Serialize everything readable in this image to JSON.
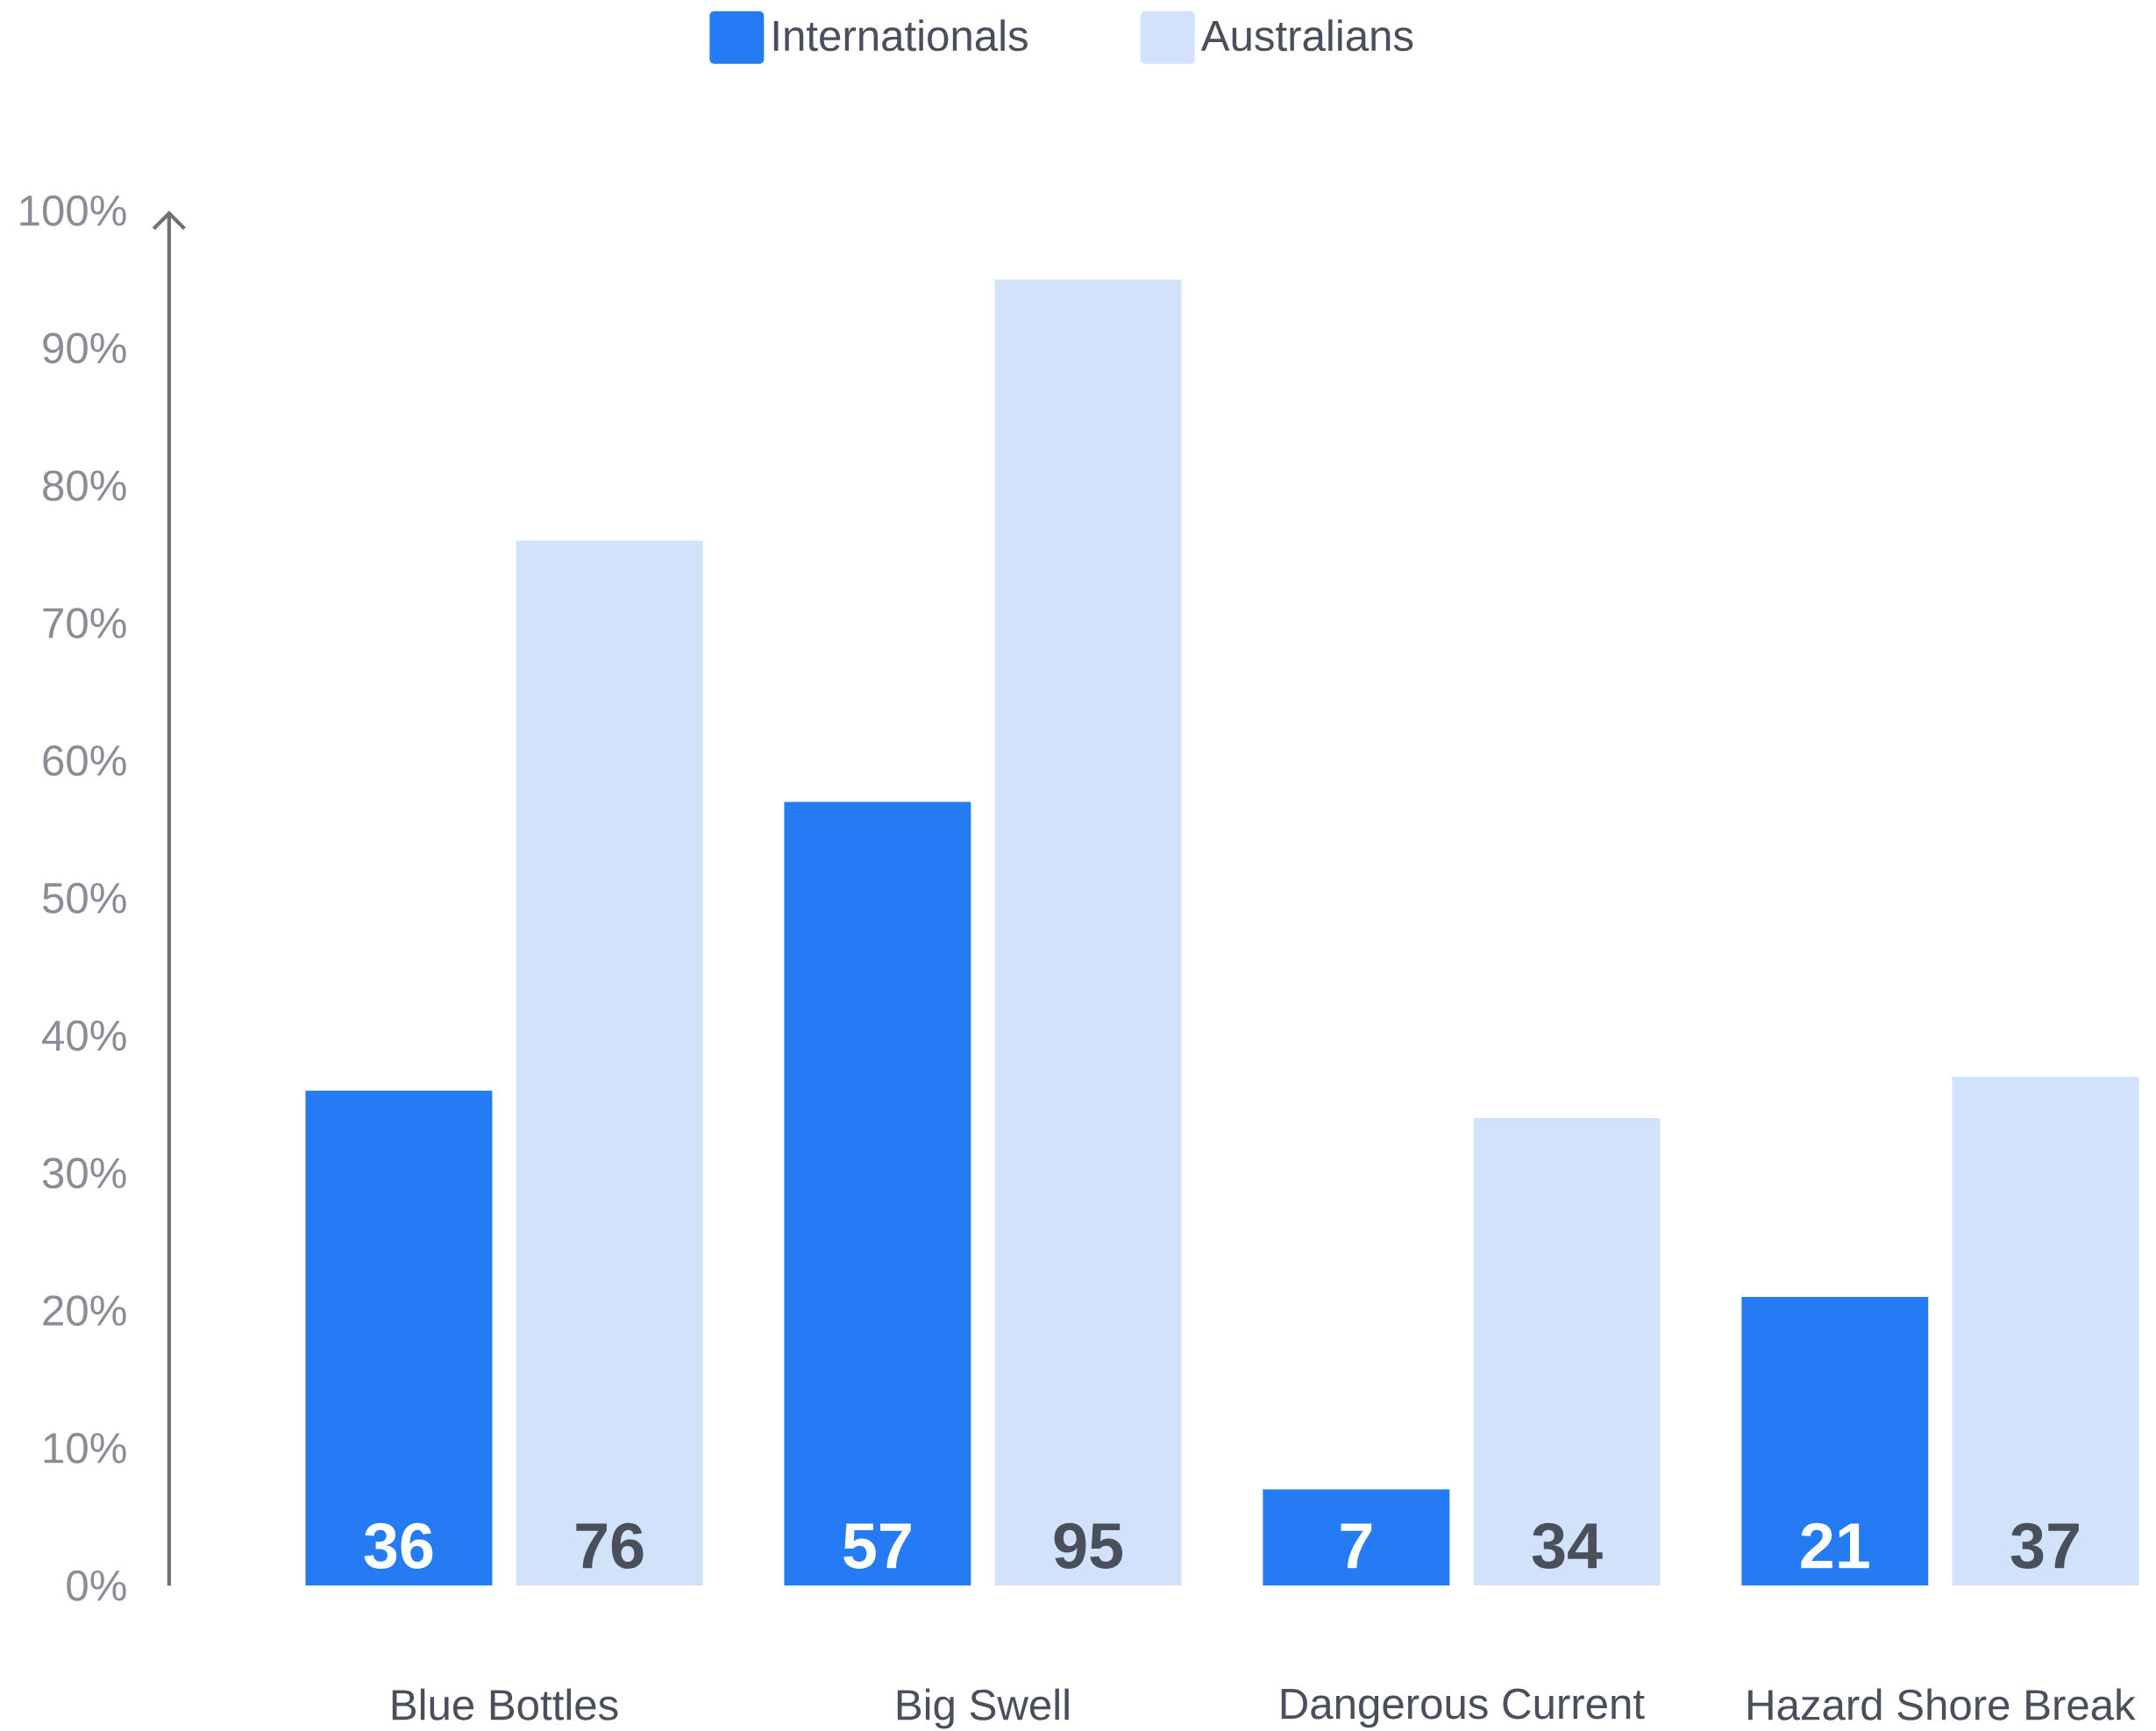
{
  "chart_data": {
    "type": "bar",
    "categories": [
      "Blue Bottles",
      "Big Swell",
      "Dangerous Current",
      "Hazard Shore Break"
    ],
    "series": [
      {
        "name": "Internationals",
        "color": "#247bf3",
        "values": [
          36,
          57,
          7,
          21
        ]
      },
      {
        "name": "Australians",
        "color": "#d3e2fb",
        "values": [
          76,
          95,
          34,
          37
        ]
      }
    ],
    "ylim": [
      0,
      100
    ],
    "yticks": [
      {
        "value": 0,
        "label": "0%"
      },
      {
        "value": 10,
        "label": "10%"
      },
      {
        "value": 20,
        "label": "20%"
      },
      {
        "value": 30,
        "label": "30%"
      },
      {
        "value": 40,
        "label": "40%"
      },
      {
        "value": 50,
        "label": "50%"
      },
      {
        "value": 60,
        "label": "60%"
      },
      {
        "value": 70,
        "label": "70%"
      },
      {
        "value": 80,
        "label": "80%"
      },
      {
        "value": 90,
        "label": "90%"
      },
      {
        "value": 100,
        "label": "100%"
      }
    ],
    "legend": "top",
    "data_labels": true
  }
}
